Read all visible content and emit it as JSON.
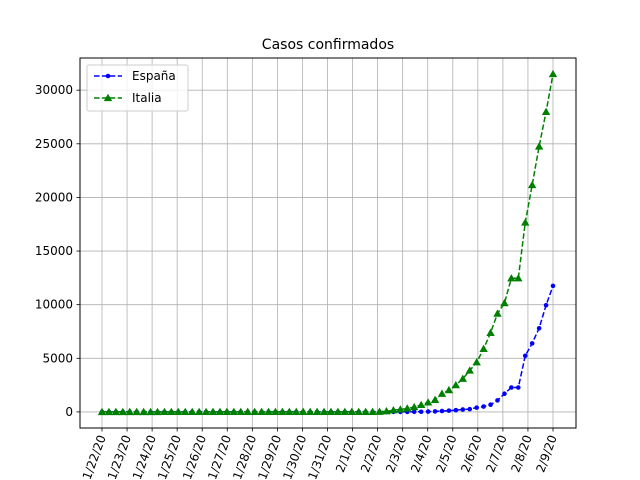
{
  "chart_data": {
    "type": "line",
    "title": "Casos confirmados",
    "xlabel": "",
    "ylabel": "",
    "x_tick_labels": [
      "1/22/20",
      "1/23/20",
      "1/24/20",
      "1/25/20",
      "1/26/20",
      "1/27/20",
      "1/28/20",
      "1/29/20",
      "1/30/20",
      "1/31/20",
      "2/1/20",
      "2/2/20",
      "2/3/20",
      "2/4/20",
      "2/5/20",
      "2/6/20",
      "2/7/20",
      "2/8/20",
      "2/9/20"
    ],
    "x_tick_rotation_deg": 70,
    "ylim": [
      -1500,
      33000
    ],
    "y_ticks": [
      0,
      5000,
      10000,
      15000,
      20000,
      25000,
      30000
    ],
    "grid": true,
    "legend_position": "upper-left",
    "series": [
      {
        "name": "España",
        "color": "#0000ff",
        "marker": "circle",
        "line_style": "dashed",
        "values": [
          0,
          0,
          0,
          0,
          0,
          0,
          0,
          0,
          0,
          0,
          0,
          0,
          0,
          0,
          0,
          0,
          0,
          0,
          0,
          0,
          0,
          0,
          0,
          0,
          0,
          0,
          0,
          0,
          0,
          0,
          0,
          0,
          0,
          0,
          0,
          0,
          0,
          0,
          0,
          0,
          1,
          1,
          1,
          2,
          6,
          13,
          15,
          32,
          45,
          84,
          120,
          165,
          222,
          259,
          400,
          500,
          673,
          1073,
          1695,
          2277,
          2277,
          5232,
          6391,
          7798,
          9942,
          11748
        ]
      },
      {
        "name": "Italia",
        "color": "#008000",
        "marker": "triangle",
        "line_style": "dashed",
        "values": [
          0,
          0,
          0,
          0,
          0,
          0,
          0,
          0,
          0,
          2,
          2,
          2,
          2,
          2,
          2,
          2,
          3,
          3,
          3,
          3,
          3,
          3,
          3,
          3,
          3,
          3,
          3,
          3,
          3,
          3,
          3,
          3,
          3,
          3,
          3,
          3,
          3,
          3,
          3,
          3,
          20,
          62,
          155,
          229,
          322,
          453,
          655,
          888,
          1128,
          1694,
          2036,
          2502,
          3089,
          3858,
          4636,
          5883,
          7375,
          9172,
          10149,
          12462,
          12462,
          17660,
          21157,
          24747,
          27980,
          31506
        ]
      }
    ]
  }
}
